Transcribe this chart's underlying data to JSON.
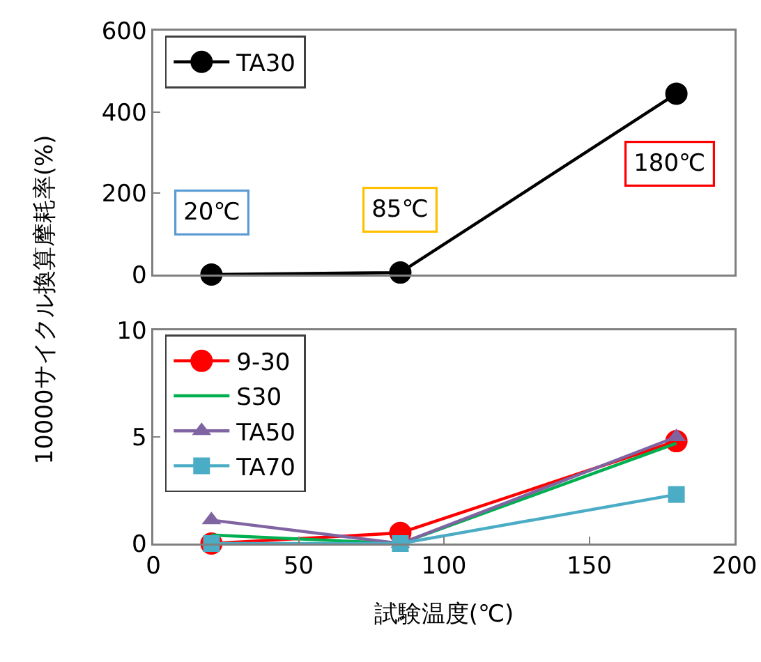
{
  "chart_data": [
    {
      "type": "line",
      "ylabel": "10000サイクル換算摩耗率(%)",
      "x": [
        20,
        85,
        180
      ],
      "series": [
        {
          "name": "TA30",
          "color": "#000000",
          "marker": "circle",
          "values": [
            0,
            5,
            445
          ]
        }
      ],
      "xlim": [
        0,
        200
      ],
      "ylim": [
        0,
        600
      ],
      "yticks": [
        0,
        200,
        400,
        600
      ],
      "tick_labels": "y",
      "grid": false,
      "legend": "top left",
      "line_style": "solid",
      "annotations": [
        {
          "text": "20℃",
          "x": 20,
          "y": 0
        },
        {
          "text": "85℃",
          "x": 85,
          "y": 5
        },
        {
          "text": "180℃",
          "x": 180,
          "y": 445
        }
      ]
    },
    {
      "type": "line",
      "xlabel": "試験温度(℃)",
      "x": [
        20,
        85,
        180
      ],
      "series": [
        {
          "name": "9-30",
          "color": "#ff0000",
          "marker": "circle",
          "values": [
            0,
            0.5,
            4.8
          ]
        },
        {
          "name": "S30",
          "color": "#00b050",
          "marker": "none",
          "values": [
            0.4,
            0,
            4.7
          ]
        },
        {
          "name": "TA50",
          "color": "#8064a2",
          "marker": "triangle",
          "values": [
            1.1,
            0,
            5.0
          ]
        },
        {
          "name": "TA70",
          "color": "#4bacc6",
          "marker": "square",
          "values": [
            0,
            0,
            2.3
          ]
        }
      ],
      "xlim": [
        0,
        200
      ],
      "xticks": [
        0,
        50,
        100,
        150,
        200
      ],
      "ylim": [
        0,
        10
      ],
      "yticks": [
        0,
        5,
        10
      ],
      "grid": false,
      "legend": "top left",
      "line_style": "solid"
    }
  ]
}
